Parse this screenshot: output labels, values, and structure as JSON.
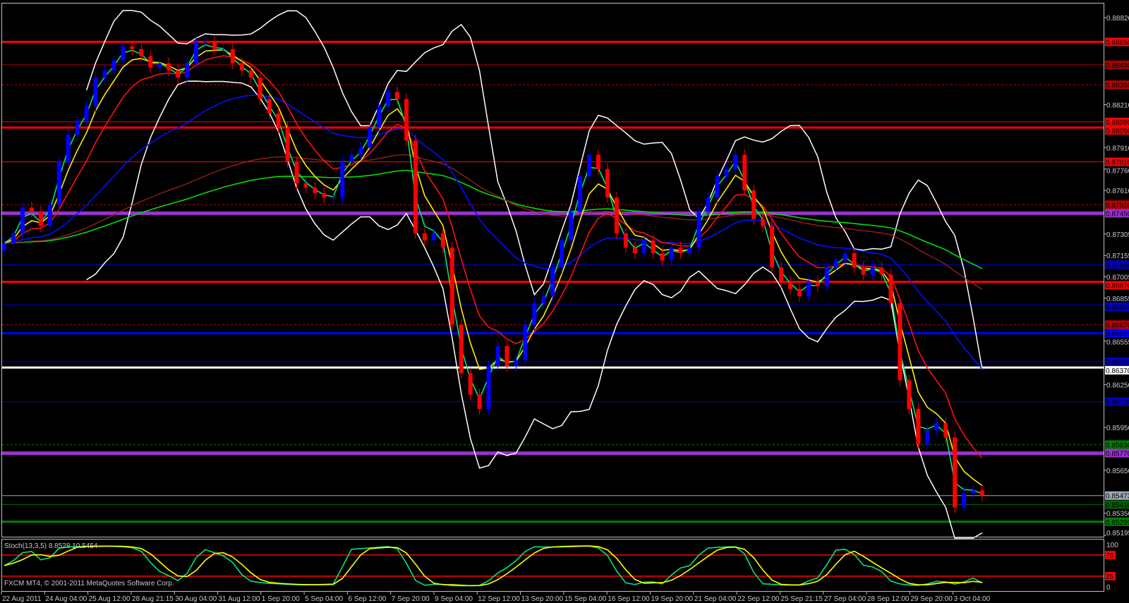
{
  "window": {
    "indicator_label": "Stoch(13,3,5) 8.8528 10.5454",
    "copyright": "FXCM MT4, © 2001-2011 MetaQuotes Software Corp."
  },
  "colors": {
    "background": "#000000",
    "bull_candle": "#0000ff",
    "bear_candle": "#ff0000",
    "stoch_main": "#00e676",
    "stoch_signal": "#ffff00",
    "bollinger": "#ffffff"
  },
  "chart_data": {
    "type": "candlestick",
    "symbol_quote_digits": 5,
    "ylim": [
      0.85195,
      0.8882
    ],
    "x_tick_labels": [
      "22 Aug 2011",
      "24 Aug 04:00",
      "25 Aug 12:00",
      "28 Aug 21:15",
      "30 Aug 04:00",
      "31 Aug 12:00",
      "1 Sep 20:00",
      "5 Sep 04:00",
      "6 Sep 12:00",
      "7 Sep 20:00",
      "9 Sep 04:00",
      "12 Sep 12:00",
      "13 Sep 20:00",
      "15 Sep 04:00",
      "16 Sep 12:00",
      "19 Sep 20:00",
      "21 Sep 04:00",
      "22 Sep 12:00",
      "25 Sep 21:15",
      "27 Sep 04:00",
      "28 Sep 12:00",
      "29 Sep 20:00",
      "3 Oct 04:00"
    ],
    "y_tick_labels": [
      "0.88820",
      "0.88210",
      "0.87910",
      "0.87760",
      "0.87610",
      "0.87305",
      "0.87155",
      "0.87005",
      "0.86855",
      "0.86555",
      "0.86250",
      "0.85950",
      "0.85650",
      "0.85350",
      "0.85195"
    ],
    "close": [
      0.8724,
      0.8731,
      0.8749,
      0.8746,
      0.8736,
      0.8751,
      0.8781,
      0.88,
      0.881,
      0.882,
      0.884,
      0.8845,
      0.8852,
      0.8862,
      0.886,
      0.8855,
      0.8847,
      0.885,
      0.8845,
      0.884,
      0.885,
      0.8865,
      0.8865,
      0.886,
      0.886,
      0.885,
      0.8845,
      0.884,
      0.8825,
      0.8815,
      0.8805,
      0.8781,
      0.8766,
      0.8763,
      0.8759,
      0.8756,
      0.8756,
      0.8781,
      0.8786,
      0.8791,
      0.8805,
      0.882,
      0.883,
      0.8825,
      0.8796,
      0.8731,
      0.8726,
      0.8731,
      0.8721,
      0.8667,
      0.8633,
      0.8618,
      0.8608,
      0.8638,
      0.8652,
      0.8638,
      0.8642,
      0.8667,
      0.8682,
      0.8687,
      0.8707,
      0.8726,
      0.8746,
      0.8771,
      0.8786,
      0.8776,
      0.8756,
      0.8731,
      0.8721,
      0.8717,
      0.8726,
      0.8717,
      0.8712,
      0.8721,
      0.8717,
      0.8721,
      0.8746,
      0.8756,
      0.8771,
      0.8776,
      0.8786,
      0.8761,
      0.8741,
      0.8736,
      0.8707,
      0.8697,
      0.8692,
      0.8687,
      0.8697,
      0.8694,
      0.8707,
      0.8712,
      0.8717,
      0.8707,
      0.8702,
      0.8707,
      0.8702,
      0.8682,
      0.8628,
      0.8608,
      0.8583,
      0.8593,
      0.8598,
      0.8588,
      0.8539,
      0.8549,
      0.8551,
      0.85473
    ],
    "levels": [
      {
        "price": 0.8865,
        "label": "0.88650",
        "color": "#ff0000",
        "style": "thick"
      },
      {
        "price": 0.8849,
        "label": "0.88490",
        "color": "#b00000",
        "style": "thin"
      },
      {
        "price": 0.8835,
        "label": "0.88350",
        "color": "#c00000",
        "style": "dashed"
      },
      {
        "price": 0.8809,
        "label": "0.88090",
        "color": "#ff0000",
        "style": "thin"
      },
      {
        "price": 0.8805,
        "label": "0.88050",
        "color": "#ff0000",
        "style": "thick"
      },
      {
        "price": 0.8781,
        "label": "0.87810",
        "color": "#ff0000",
        "style": "thin"
      },
      {
        "price": 0.8751,
        "label": "0.87510",
        "color": "#c00000",
        "style": "dashed"
      },
      {
        "price": 0.8745,
        "label": "0.87450",
        "color": "#9932cc",
        "style": "heavy"
      },
      {
        "price": 0.8709,
        "label": "0.87090",
        "color": "#0000c8",
        "style": "thin"
      },
      {
        "price": 0.8697,
        "label": "0.86970",
        "color": "#ff0000",
        "style": "thick"
      },
      {
        "price": 0.8681,
        "label": "0.86810",
        "color": "#0000c8",
        "style": "thin"
      },
      {
        "price": 0.8667,
        "label": "0.86670",
        "color": "#c00000",
        "style": "dashed"
      },
      {
        "price": 0.8661,
        "label": "0.86610",
        "color": "#0000ff",
        "style": "thick"
      },
      {
        "price": 0.8641,
        "label": "0.86410",
        "color": "#0000c8",
        "style": "thin"
      },
      {
        "price": 0.8637,
        "label": "0.86370",
        "color": "#ffffff",
        "style": "thick"
      },
      {
        "price": 0.8613,
        "label": "0.86130",
        "color": "#0000c8",
        "style": "thin"
      },
      {
        "price": 0.8583,
        "label": "0.85830",
        "color": "#008000",
        "style": "dashed"
      },
      {
        "price": 0.8577,
        "label": "0.85770",
        "color": "#9932cc",
        "style": "heavy"
      },
      {
        "price": 0.85473,
        "label": "0.85473",
        "color": "#a0a8b8",
        "style": "thin"
      },
      {
        "price": 0.8541,
        "label": "0.85410",
        "color": "#006400",
        "style": "thin"
      },
      {
        "price": 0.8529,
        "label": "0.85290",
        "color": "#008000",
        "style": "thick"
      }
    ],
    "stochastic": {
      "name": "Stoch(13,3,5)",
      "main_value": 8.8528,
      "signal_value": 10.5454,
      "ylim": [
        0,
        100
      ],
      "y_tick_labels": [
        "100",
        "0"
      ],
      "levels": [
        {
          "value": 75,
          "label": "75"
        },
        {
          "value": 25,
          "label": "25"
        }
      ]
    }
  }
}
